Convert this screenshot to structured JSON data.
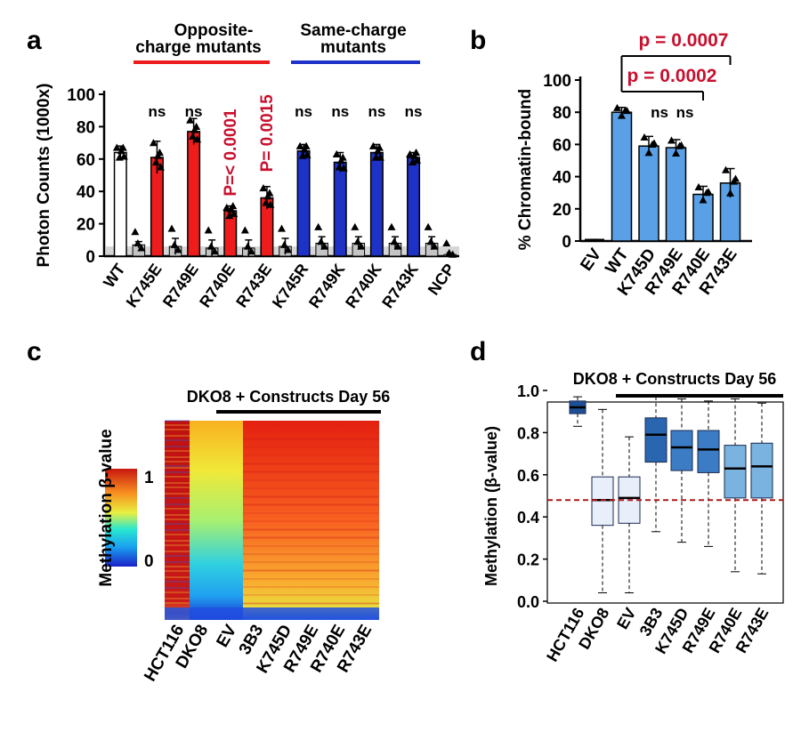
{
  "panels": {
    "a": "a",
    "b": "b",
    "c": "c",
    "d": "d"
  },
  "colors": {
    "red": "#ee1c1c",
    "blue": "#1e32c8",
    "lightblue": "#5aa0e6",
    "sig": "#c8102e",
    "black": "#000000"
  },
  "chart_data": [
    {
      "id": "a",
      "type": "bar",
      "ylabel": "Photon Counts (1000x)",
      "ylim": [
        0,
        100
      ],
      "yticks": [
        0,
        20,
        40,
        60,
        80,
        100
      ],
      "categories": [
        "WT",
        "K745E",
        "R749E",
        "R740E",
        "R743E",
        "K745R",
        "R749K",
        "R740K",
        "R743K",
        "NCP"
      ],
      "bars": [
        {
          "value": 64,
          "err": 4,
          "color": "white"
        },
        {
          "value": 7,
          "err": 2,
          "color": "gray"
        },
        {
          "value": 61,
          "err": 10,
          "color": "red"
        },
        {
          "value": 6,
          "err": 5,
          "color": "gray"
        },
        {
          "value": 77,
          "err": 8,
          "color": "red"
        },
        {
          "value": 5,
          "err": 5,
          "color": "gray"
        },
        {
          "value": 28,
          "err": 3,
          "color": "red"
        },
        {
          "value": 5,
          "err": 5,
          "color": "gray"
        },
        {
          "value": 36,
          "err": 7,
          "color": "red"
        },
        {
          "value": 6,
          "err": 5,
          "color": "gray"
        },
        {
          "value": 65,
          "err": 4,
          "color": "blue"
        },
        {
          "value": 8,
          "err": 4,
          "color": "gray"
        },
        {
          "value": 58,
          "err": 6,
          "color": "blue"
        },
        {
          "value": 8,
          "err": 4,
          "color": "gray"
        },
        {
          "value": 64,
          "err": 5,
          "color": "blue"
        },
        {
          "value": 8,
          "err": 4,
          "color": "gray"
        },
        {
          "value": 61,
          "err": 3,
          "color": "blue"
        },
        {
          "value": 8,
          "err": 4,
          "color": "gray"
        },
        {
          "value": 1,
          "err": 1,
          "color": "gray"
        }
      ],
      "ns_label": "ns",
      "pvalues": [
        "P=< 0.0001",
        "P= 0.0015"
      ],
      "groups": [
        {
          "label_line1": "Opposite-",
          "label_line2": "charge mutants"
        },
        {
          "label_line1": "Same-charge",
          "label_line2": "mutants"
        }
      ]
    },
    {
      "id": "b",
      "type": "bar",
      "ylabel": "% Chromatin-bound",
      "ylim": [
        0,
        100
      ],
      "yticks": [
        0,
        20,
        40,
        60,
        80,
        100
      ],
      "categories": [
        "EV",
        "WT",
        "K745D",
        "R749E",
        "R740E",
        "R743E"
      ],
      "values": [
        0,
        80,
        59,
        58,
        29,
        36
      ],
      "errors": [
        1,
        3,
        6,
        5,
        5,
        9
      ],
      "ns_label": "ns",
      "pvalues": [
        "p = 0.0007",
        "p = 0.0002"
      ]
    },
    {
      "id": "c",
      "type": "heatmap",
      "title": "DKO8 + Constructs Day 56",
      "colorbar_label": "Methylation β-value",
      "colorbar_ticks": [
        "1",
        "0"
      ],
      "columns": [
        "HCT116",
        "DKO8",
        "EV",
        "3B3",
        "K745D",
        "R749E",
        "R740E",
        "R743E"
      ]
    },
    {
      "id": "d",
      "type": "box",
      "title": "DKO8 + Constructs Day 56",
      "ylabel": "Methylation (β-value)",
      "ylim": [
        0,
        1
      ],
      "yticks": [
        "0.0",
        "0.2",
        "0.4",
        "0.6",
        "0.8",
        "1.0"
      ],
      "reference_line": 0.48,
      "categories": [
        "HCT116",
        "DKO8",
        "EV",
        "3B3",
        "K745D",
        "R749E",
        "R740E",
        "R743E"
      ],
      "boxes": [
        {
          "min": 0.83,
          "q1": 0.89,
          "median": 0.92,
          "q3": 0.95,
          "max": 0.97
        },
        {
          "min": 0.04,
          "q1": 0.36,
          "median": 0.48,
          "q3": 0.59,
          "max": 0.91
        },
        {
          "min": 0.04,
          "q1": 0.37,
          "median": 0.49,
          "q3": 0.59,
          "max": 0.78
        },
        {
          "min": 0.33,
          "q1": 0.66,
          "median": 0.79,
          "q3": 0.87,
          "max": 0.97
        },
        {
          "min": 0.28,
          "q1": 0.62,
          "median": 0.73,
          "q3": 0.81,
          "max": 0.96
        },
        {
          "min": 0.26,
          "q1": 0.61,
          "median": 0.72,
          "q3": 0.81,
          "max": 0.95
        },
        {
          "min": 0.14,
          "q1": 0.49,
          "median": 0.63,
          "q3": 0.74,
          "max": 0.96
        },
        {
          "min": 0.13,
          "q1": 0.49,
          "median": 0.64,
          "q3": 0.75,
          "max": 0.94
        }
      ]
    }
  ]
}
